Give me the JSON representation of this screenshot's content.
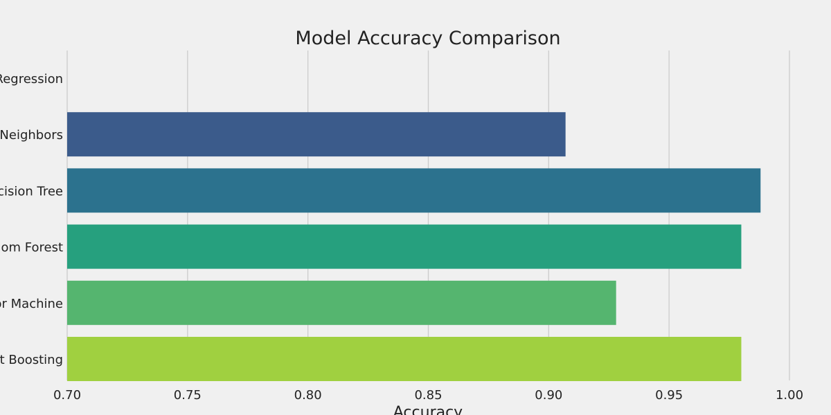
{
  "chart_data": {
    "type": "bar",
    "orientation": "horizontal",
    "title": "Model Accuracy Comparison",
    "xlabel": "Accuracy",
    "ylabel": "",
    "categories": [
      "Logistic Regression",
      "K-Nearest Neighbors",
      "Decision Tree",
      "Random Forest",
      "Support Vector Machine",
      "Gradient Boosting"
    ],
    "values": [
      0.69,
      0.907,
      0.988,
      0.98,
      0.928,
      0.98
    ],
    "xlim": [
      0.7,
      1.0
    ],
    "xticks": [
      "0.70",
      "0.75",
      "0.80",
      "0.85",
      "0.90",
      "0.95",
      "1.00"
    ],
    "grid": "vertical",
    "colors": [
      "#472d7b",
      "#3b5b8b",
      "#2c728e",
      "#26a07e",
      "#55b56f",
      "#a0d040"
    ],
    "background": "#f0f0f0",
    "grid_color": "#cccccc"
  }
}
